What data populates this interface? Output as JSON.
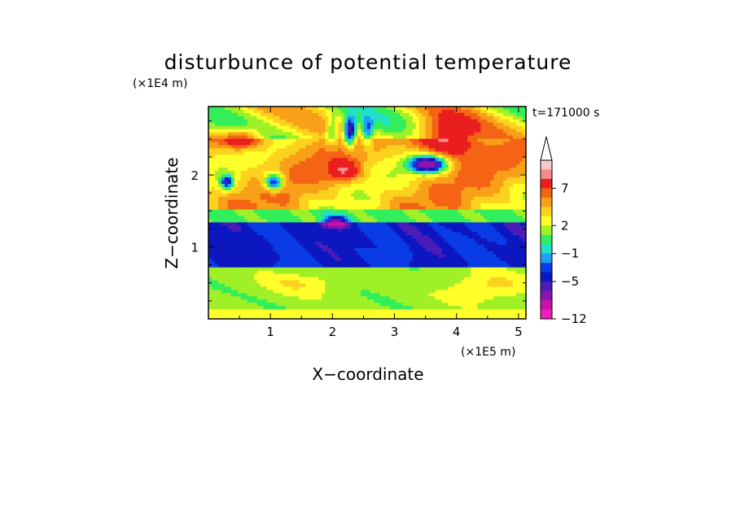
{
  "chart_data": {
    "type": "heatmap",
    "title": "disturbunce of potential temperature",
    "xlabel": "X−coordinate",
    "ylabel": "Z−coordinate",
    "x_unit": "(×1E5 m)",
    "y_unit": "(×1E4 m)",
    "time_label": "t=171000 s",
    "xlim": [
      0,
      5.12
    ],
    "ylim": [
      0,
      2.95
    ],
    "x_ticks": [
      1,
      2,
      3,
      4,
      5
    ],
    "y_ticks": [
      1,
      2
    ],
    "x_tick_labels": [
      "1",
      "2",
      "3",
      "4",
      "5"
    ],
    "y_tick_labels": [
      "1",
      "2"
    ],
    "colorbar": {
      "levels": [
        -12,
        -10,
        -8,
        -6,
        -5,
        -4,
        -3,
        -2,
        -1,
        0,
        1,
        2,
        3,
        4,
        5,
        7,
        8,
        10,
        12
      ],
      "labeled_levels": [
        "7",
        "2",
        "−1",
        "−5",
        "−12"
      ],
      "colors_top_to_bottom": [
        "#ffc8c8",
        "#f58c8c",
        "#ea1e1e",
        "#f46414",
        "#f7a018",
        "#fdd21e",
        "#ffff2a",
        "#a0f028",
        "#32ee5a",
        "#22e0c8",
        "#1ea0f0",
        "#0a3ce6",
        "#0d17c0",
        "#4a1cb8",
        "#8c14b0",
        "#cc10a8",
        "#f01ebe"
      ],
      "extend_top": true
    },
    "pattern": [
      {
        "z_range": [
          0.0,
          0.15
        ],
        "dominant": "yellow/green (0 to 2)"
      },
      {
        "z_range": [
          0.15,
          0.7
        ],
        "dominant": "green/cyan (-1 to 1)"
      },
      {
        "z_range": [
          0.75,
          1.3
        ],
        "dominant": "blue (-5 to -3)"
      },
      {
        "z_range": [
          1.3,
          1.5
        ],
        "dominant": "cyan/green"
      },
      {
        "z_range": [
          1.5,
          2.5
        ],
        "dominant": "yellow/orange (2 to 7)"
      },
      {
        "z_range": [
          2.5,
          2.95
        ],
        "dominant": "mixed red and purple wave cells"
      }
    ]
  }
}
